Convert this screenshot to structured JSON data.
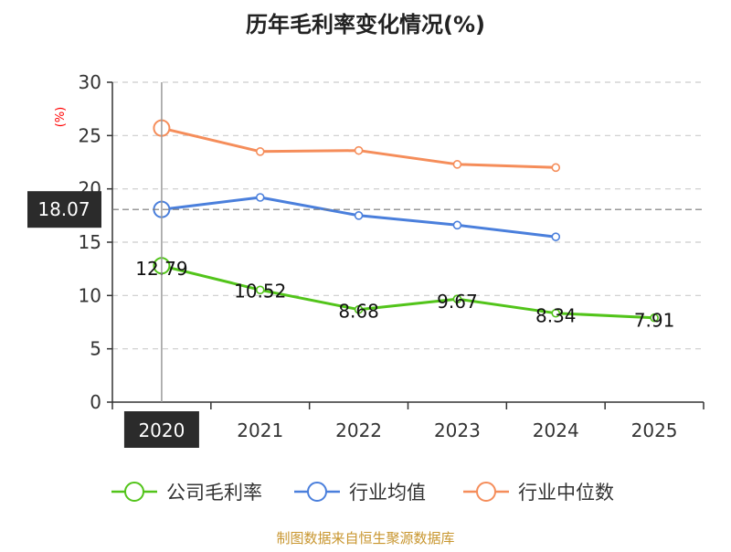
{
  "chart_data": {
    "type": "line",
    "title": "历年毛利率变化情况(%)",
    "y_unit": "(%)",
    "x": [
      "2020",
      "2021",
      "2022",
      "2023",
      "2024",
      "2025"
    ],
    "ylim": [
      0,
      30
    ],
    "y_ticks": [
      "0",
      "5",
      "10",
      "15",
      "20",
      "25",
      "30"
    ],
    "grid": true,
    "legend_placement": "bottom",
    "series": [
      {
        "name": "公司毛利率",
        "color": "#52c41a",
        "values": [
          12.79,
          10.52,
          8.68,
          9.67,
          8.34,
          7.91
        ],
        "labels": [
          "12.79",
          "10.52",
          "8.68",
          "9.67",
          "8.34",
          "7.91"
        ]
      },
      {
        "name": "行业均值",
        "color": "#4a7fdc",
        "values": [
          18.07,
          19.2,
          17.5,
          16.6,
          15.5,
          null
        ]
      },
      {
        "name": "行业中位数",
        "color": "#f58d5a",
        "values": [
          25.7,
          23.5,
          23.6,
          22.3,
          22.0,
          null
        ]
      }
    ],
    "crosshair": {
      "x": "2020",
      "y_label": "18.07"
    },
    "source": "制图数据来自恒生聚源数据库",
    "colors": {
      "unit": "#ff0000",
      "source": "#c8962f",
      "axis": "#333333",
      "grid": "#cccccc",
      "tooltip_bg": "#2b2b2b"
    }
  }
}
